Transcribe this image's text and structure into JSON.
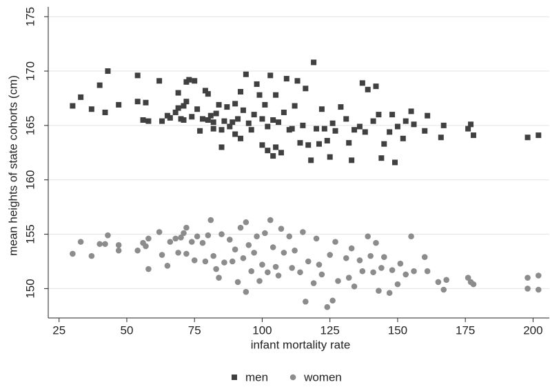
{
  "chart_data": {
    "type": "scatter",
    "xlabel": "infant mortality rate",
    "ylabel": "mean heights of state cohorts (cm)",
    "xlim": [
      21,
      206
    ],
    "ylim": [
      147.3,
      175.9
    ],
    "xticks": [
      25,
      50,
      75,
      100,
      125,
      150,
      175,
      200
    ],
    "yticks": [
      150,
      155,
      160,
      165,
      170,
      175
    ],
    "grid": true,
    "legend": "bottom",
    "series": [
      {
        "name": "men",
        "color": "#404040",
        "marker": "square",
        "x": [
          30,
          33,
          37,
          40,
          42,
          43,
          47,
          54,
          54,
          56,
          57,
          58,
          62,
          63,
          65,
          66,
          68,
          69,
          69,
          70,
          71,
          71,
          72,
          72,
          73,
          74,
          75,
          76,
          77,
          78,
          79,
          80,
          80,
          81,
          82,
          82,
          83,
          84,
          85,
          85,
          86,
          87,
          88,
          89,
          90,
          90,
          91,
          92,
          92,
          93,
          94,
          95,
          96,
          97,
          98,
          99,
          100,
          100,
          101,
          102,
          102,
          103,
          104,
          104,
          105,
          105,
          106,
          107,
          108,
          109,
          110,
          111,
          112,
          113,
          114,
          115,
          116,
          117,
          118,
          119,
          120,
          121,
          122,
          123,
          124,
          125,
          126,
          127,
          129,
          131,
          132,
          133,
          134,
          136,
          137,
          138,
          139,
          141,
          142,
          143,
          144,
          145,
          147,
          148,
          149,
          150,
          152,
          153,
          155,
          156,
          160,
          161,
          166,
          167,
          176,
          177,
          178,
          198,
          202
        ],
        "values": [
          166.8,
          167.6,
          166.5,
          168.7,
          166.2,
          170,
          166.9,
          169.6,
          167.2,
          165.5,
          167.1,
          165.4,
          169.1,
          165.4,
          165.9,
          165.7,
          166.2,
          168,
          166.6,
          165.6,
          166.8,
          165.5,
          167.2,
          169,
          169.2,
          165.8,
          169.1,
          166.5,
          164.5,
          165.6,
          168.2,
          165.5,
          167.9,
          165.9,
          165.3,
          164.7,
          166.1,
          166.9,
          163,
          164.6,
          165.4,
          166.7,
          164.9,
          165.3,
          167,
          164.2,
          165.6,
          168.1,
          163.8,
          166.4,
          169.7,
          165.2,
          164.6,
          166,
          168.8,
          167.8,
          165.6,
          163.2,
          166.9,
          164.9,
          162.7,
          169.6,
          165.5,
          162.2,
          167.8,
          163,
          165.3,
          162.5,
          166.2,
          169.3,
          164.6,
          164.7,
          166.8,
          169.1,
          163.4,
          165,
          168.4,
          163.2,
          161.8,
          170.8,
          164.7,
          163.3,
          166.5,
          164.7,
          163.6,
          162.1,
          165.2,
          164.5,
          166.7,
          165.6,
          163.4,
          161.8,
          164.6,
          164.9,
          168.9,
          164.4,
          168.3,
          165.4,
          168.6,
          166,
          162,
          163.3,
          164.4,
          166,
          161.6,
          164.9,
          163.8,
          165.4,
          166.3,
          165.1,
          164.5,
          165.9,
          163.9,
          165,
          164.7,
          165.1,
          164.1,
          163.9,
          164.1
        ]
      },
      {
        "name": "women",
        "color": "#8c8c8c",
        "marker": "circle",
        "x": [
          30,
          33,
          37,
          40,
          42,
          43,
          47,
          47,
          54,
          56,
          57,
          58,
          58,
          62,
          63,
          65,
          66,
          68,
          69,
          70,
          71,
          72,
          72,
          74,
          75,
          76,
          78,
          79,
          80,
          81,
          82,
          83,
          84,
          85,
          86,
          88,
          89,
          90,
          91,
          92,
          93,
          94,
          94,
          95,
          96,
          97,
          98,
          99,
          100,
          101,
          102,
          103,
          104,
          105,
          106,
          107,
          108,
          110,
          111,
          112,
          114,
          115,
          116,
          117,
          119,
          120,
          121,
          122,
          124,
          125,
          126,
          127,
          128,
          131,
          132,
          133,
          134,
          136,
          137,
          139,
          140,
          141,
          142,
          143,
          144,
          145,
          147,
          148,
          150,
          151,
          153,
          155,
          156,
          160,
          161,
          165,
          167,
          168,
          176,
          177,
          178,
          198,
          198,
          202,
          202
        ],
        "values": [
          153.2,
          154.3,
          153,
          154.1,
          154.1,
          154.9,
          153.5,
          154,
          153.5,
          154.2,
          153.9,
          151.8,
          154.6,
          155.2,
          153.1,
          152.1,
          154.3,
          154.6,
          153.3,
          154.7,
          155.1,
          155.6,
          153.2,
          154.3,
          152.6,
          154.8,
          154.2,
          152.5,
          154.9,
          156.3,
          153,
          151.8,
          151,
          155,
          152.4,
          154.5,
          152.5,
          153.6,
          150.6,
          155.6,
          152.8,
          156.1,
          149.7,
          154,
          151.6,
          153.3,
          154.8,
          150.7,
          152.2,
          155.1,
          151.5,
          156.3,
          153.8,
          152,
          151.2,
          155.5,
          153.3,
          154.8,
          151.9,
          153.5,
          151.5,
          155.2,
          148.8,
          152.5,
          150.5,
          154.6,
          152.2,
          151.3,
          148.3,
          153.1,
          148.9,
          154.3,
          150.7,
          152.8,
          151,
          153.7,
          150.2,
          152.6,
          151.6,
          154.8,
          153,
          151.5,
          154.2,
          149.8,
          151.9,
          152.9,
          149.6,
          151.7,
          150.4,
          152.3,
          151.3,
          154.8,
          151.6,
          152.9,
          151.6,
          150.6,
          149.9,
          150.8,
          151,
          150.6,
          150.4,
          150,
          151,
          151.2,
          149.9
        ]
      }
    ]
  }
}
